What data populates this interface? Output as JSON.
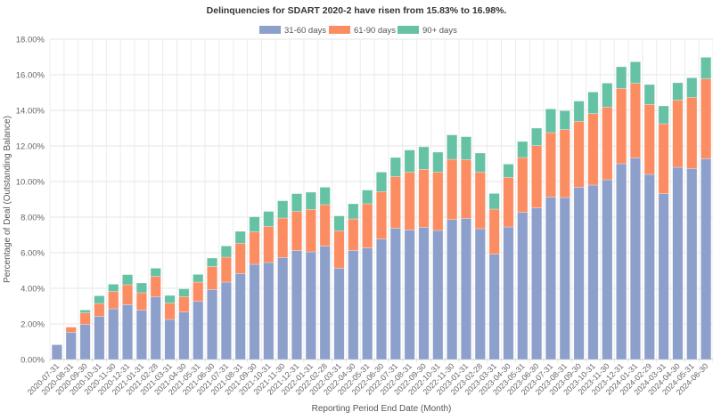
{
  "chart_data": {
    "type": "bar",
    "stacked": true,
    "title": "Delinquencies for SDART 2020-2 have risen from 15.83% to 16.98%.",
    "xlabel": "Reporting Period End Date (Month)",
    "ylabel": "Percentage of Deal (Outstanding Balance)",
    "ylim": [
      0,
      18
    ],
    "yticks": [
      "0.00%",
      "2.00%",
      "4.00%",
      "6.00%",
      "8.00%",
      "10.00%",
      "12.00%",
      "14.00%",
      "16.00%",
      "18.00%"
    ],
    "ytick_values": [
      0,
      2,
      4,
      6,
      8,
      10,
      12,
      14,
      16,
      18
    ],
    "grid": true,
    "legend_position": "top-center",
    "categories": [
      "2020-07-31",
      "2020-08-31",
      "2020-09-30",
      "2020-10-31",
      "2020-11-30",
      "2020-12-31",
      "2021-01-31",
      "2021-02-28",
      "2021-03-31",
      "2021-04-30",
      "2021-05-31",
      "2021-06-30",
      "2021-07-31",
      "2021-08-31",
      "2021-09-30",
      "2021-10-31",
      "2021-11-30",
      "2021-12-31",
      "2022-01-31",
      "2022-02-28",
      "2022-03-31",
      "2022-04-30",
      "2022-05-31",
      "2022-06-30",
      "2022-07-31",
      "2022-08-31",
      "2022-09-30",
      "2022-10-31",
      "2022-11-30",
      "2023-01-31",
      "2023-02-28",
      "2023-03-31",
      "2023-04-30",
      "2023-05-31",
      "2023-06-30",
      "2023-07-31",
      "2023-08-31",
      "2023-09-30",
      "2023-10-31",
      "2023-11-30",
      "2023-12-31",
      "2024-01-31",
      "2024-02-29",
      "2024-03-31",
      "2024-04-30",
      "2024-05-31",
      "2024-06-30"
    ],
    "series": [
      {
        "name": "31-60 days",
        "color": "#8da0cb",
        "values": [
          0.83,
          1.53,
          1.97,
          2.43,
          2.85,
          3.08,
          2.78,
          3.52,
          2.25,
          2.67,
          3.27,
          3.93,
          4.35,
          4.83,
          5.35,
          5.45,
          5.73,
          6.12,
          6.05,
          6.37,
          5.13,
          6.13,
          6.27,
          6.77,
          7.38,
          7.28,
          7.43,
          7.25,
          7.87,
          7.93,
          7.35,
          5.92,
          7.45,
          8.27,
          8.52,
          9.13,
          9.1,
          9.68,
          9.8,
          10.1,
          11.0,
          11.33,
          10.4,
          9.32,
          10.8,
          10.73,
          11.28
        ]
      },
      {
        "name": "61-90 days",
        "color": "#fc8d62",
        "values": [
          0.0,
          0.29,
          0.65,
          0.72,
          0.97,
          1.12,
          0.97,
          1.15,
          0.92,
          0.86,
          1.08,
          1.29,
          1.4,
          1.7,
          1.82,
          2.03,
          2.22,
          2.2,
          2.38,
          2.33,
          2.1,
          1.77,
          2.48,
          2.66,
          2.9,
          3.25,
          3.25,
          3.28,
          3.38,
          3.3,
          3.18,
          2.53,
          2.78,
          3.08,
          3.5,
          3.62,
          3.82,
          3.7,
          4.02,
          4.08,
          4.23,
          4.19,
          3.93,
          3.93,
          3.78,
          4.0,
          4.49
        ]
      },
      {
        "name": "90+ days",
        "color": "#66c2a5",
        "values": [
          0.0,
          0.0,
          0.16,
          0.43,
          0.41,
          0.57,
          0.55,
          0.46,
          0.43,
          0.44,
          0.43,
          0.48,
          0.63,
          0.67,
          0.85,
          0.84,
          0.97,
          1.0,
          0.97,
          0.98,
          0.84,
          0.85,
          0.77,
          1.1,
          1.07,
          1.24,
          1.27,
          1.12,
          1.37,
          1.29,
          1.07,
          0.88,
          0.75,
          0.9,
          0.98,
          1.33,
          1.06,
          1.14,
          1.21,
          1.35,
          1.22,
          1.21,
          1.12,
          1.0,
          0.97,
          1.1,
          1.21
        ]
      }
    ]
  }
}
